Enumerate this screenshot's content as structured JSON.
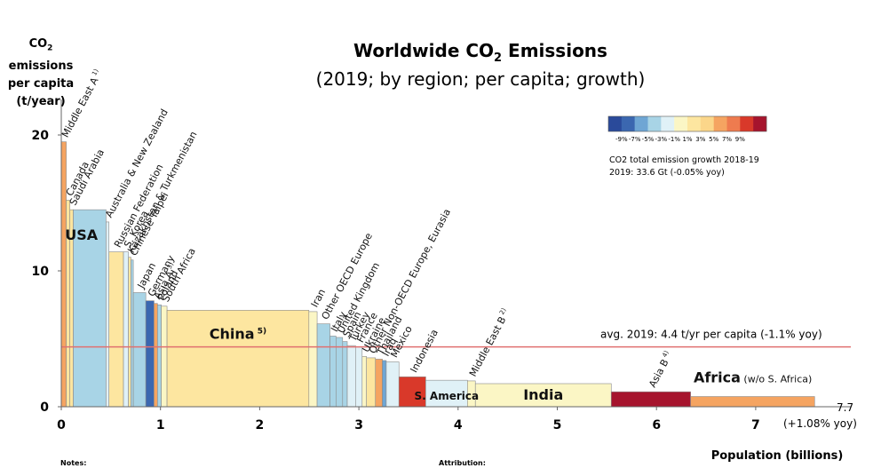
{
  "colors": {
    "very_light_blue": "#e0f1f7",
    "light_blue": "#a8d4e6",
    "mid_blue": "#6fa6d4",
    "dark_blue": "#3b67b0",
    "very_light_yellow": "#fbf6c5",
    "light_yellow": "#fde6a0",
    "yellow_orange": "#fbd68a",
    "orange": "#f5a461",
    "red": "#d9392a",
    "dark_red": "#a6142d",
    "avg_line": "#e07070"
  },
  "chart_data": {
    "type": "bar",
    "subtype": "variable-width bar (Marimekko) chart",
    "title": "Worldwide CO",
    "title_sub": "2",
    "title_suffix": " Emissions",
    "subtitle": "(2019; by region; per capita; growth)",
    "ylabel_line1": "CO",
    "ylabel_sub": "2",
    "ylabel_line1b": " emissions",
    "ylabel_line2": "per capita",
    "ylabel_line3": "(t/year)",
    "xlabel": "Population (billions)",
    "xlim": [
      0,
      7.7
    ],
    "ylim": [
      0,
      22
    ],
    "x_ticks": [
      0,
      1,
      2,
      3,
      4,
      5,
      6,
      7
    ],
    "x_tick_labels": [
      "0",
      "1",
      "2",
      "3",
      "4",
      "5",
      "6",
      "7"
    ],
    "y_ticks": [
      0,
      10,
      20
    ],
    "y_tick_labels": [
      "0",
      "10",
      "20"
    ],
    "series": [
      {
        "name": "Middle East A",
        "sup": "1)",
        "population": 0.05,
        "value": 19.5,
        "color": "orange"
      },
      {
        "name": "Canada",
        "population": 0.037,
        "value": 15.2,
        "color": "light_yellow"
      },
      {
        "name": "Saudi Arabia",
        "population": 0.034,
        "value": 14.5,
        "color": "light_yellow"
      },
      {
        "name": "USA",
        "population": 0.33,
        "value": 14.5,
        "color": "light_blue",
        "inside_label": true
      },
      {
        "name": "Australia & New Zealand",
        "population": 0.03,
        "value": 13.6,
        "color": "very_light_blue"
      },
      {
        "name": "Russian Federation",
        "population": 0.146,
        "value": 11.4,
        "color": "light_yellow"
      },
      {
        "name": "S. Korea",
        "population": 0.05,
        "value": 11.4,
        "color": "very_light_blue"
      },
      {
        "name": "Kazakhstan & Turkmenistan",
        "population": 0.025,
        "value": 11.0,
        "color": "light_yellow"
      },
      {
        "name": "Chinese Taipei",
        "population": 0.024,
        "value": 10.8,
        "color": "light_blue"
      },
      {
        "name": "Japan",
        "population": 0.126,
        "value": 8.4,
        "color": "light_blue"
      },
      {
        "name": "Germany",
        "population": 0.083,
        "value": 7.8,
        "color": "dark_blue"
      },
      {
        "name": "Asia A",
        "sup": "3)",
        "population": 0.035,
        "value": 7.6,
        "color": "orange"
      },
      {
        "name": "Poland",
        "population": 0.038,
        "value": 7.5,
        "color": "light_blue"
      },
      {
        "name": "South Africa",
        "population": 0.058,
        "value": 7.4,
        "color": "very_light_yellow"
      },
      {
        "name": "China",
        "sup": "5)",
        "population": 1.43,
        "value": 7.1,
        "color": "light_yellow",
        "inside_label": true
      },
      {
        "name": "Iran",
        "population": 0.083,
        "value": 7.0,
        "color": "very_light_yellow"
      },
      {
        "name": "Other OECD Europe",
        "population": 0.13,
        "value": 6.1,
        "color": "light_blue"
      },
      {
        "name": "Italy",
        "population": 0.06,
        "value": 5.2,
        "color": "light_blue"
      },
      {
        "name": "United Kingdom",
        "population": 0.067,
        "value": 5.1,
        "color": "light_blue"
      },
      {
        "name": "Spain",
        "population": 0.047,
        "value": 4.8,
        "color": "light_blue"
      },
      {
        "name": "Turkey",
        "population": 0.083,
        "value": 4.5,
        "color": "very_light_blue"
      },
      {
        "name": "France",
        "population": 0.067,
        "value": 4.4,
        "color": "very_light_blue"
      },
      {
        "name": "Ukraine",
        "population": 0.044,
        "value": 3.7,
        "color": "very_light_yellow"
      },
      {
        "name": "Other Non-OECD Europe, Eurasia",
        "population": 0.09,
        "value": 3.6,
        "color": "light_yellow"
      },
      {
        "name": "Thailand",
        "population": 0.07,
        "value": 3.5,
        "color": "orange"
      },
      {
        "name": "Iraq",
        "population": 0.039,
        "value": 3.4,
        "color": "mid_blue"
      },
      {
        "name": "Mexico",
        "population": 0.128,
        "value": 3.3,
        "color": "very_light_blue"
      },
      {
        "name": "Indonesia",
        "population": 0.27,
        "value": 2.2,
        "color": "red"
      },
      {
        "name": "S. America",
        "population": 0.42,
        "value": 1.95,
        "color": "very_light_blue",
        "inside_label": true
      },
      {
        "name": "Middle East B",
        "sup": "2)",
        "population": 0.08,
        "value": 1.9,
        "color": "very_light_yellow"
      },
      {
        "name": "India",
        "population": 1.37,
        "value": 1.7,
        "color": "very_light_yellow",
        "inside_label": true
      },
      {
        "name": "Asia B",
        "sup": "4)",
        "population": 0.8,
        "value": 1.1,
        "color": "dark_red"
      },
      {
        "name": "Africa",
        "suffix": " (w/o S. Africa)",
        "population": 1.25,
        "value": 0.75,
        "color": "orange",
        "inside_label": true
      }
    ],
    "average": {
      "value": 4.4,
      "label": "avg. 2019: 4.4 t/yr per capita (-1.1% yoy)"
    },
    "end_label": {
      "total": "7.7",
      "growth": "(+1.08% yoy)"
    },
    "legend": {
      "colors": [
        "#2a4a9a",
        "#3b67b0",
        "#6fa6d4",
        "#a8d4e6",
        "#e0f1f7",
        "#fbf6c5",
        "#fde6a0",
        "#fbd68a",
        "#f5a461",
        "#ee7b4f",
        "#d9392a",
        "#a6142d"
      ],
      "tick_labels": [
        "-9%",
        "-7%",
        "-5%",
        "-3%",
        "-1%",
        "1%",
        "3%",
        "5%",
        "7%",
        "9%"
      ],
      "caption_line1": "CO2 total emission growth 2018-19",
      "caption_line2": "2019: 33.6 Gt (-0.05% yoy)"
    }
  },
  "footer": {
    "notes": "Notes:",
    "attribution": "Attribution:"
  }
}
